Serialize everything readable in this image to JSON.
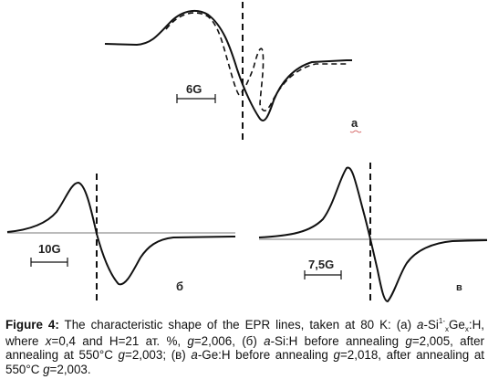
{
  "panels": {
    "a": {
      "label": "a",
      "scale_label": "6G"
    },
    "b": {
      "label": "б",
      "scale_label": "10G"
    },
    "c": {
      "label": "в",
      "scale_label": "7,5G"
    }
  },
  "caption": {
    "lead": "Figure 4:",
    "t1": " The characteristic shape of the EPR lines, taken at 80 K: (a) ",
    "ai": "a",
    "t2": "-Si",
    "sub1": "1-",
    "subx": "x",
    "t3": "Ge",
    "sub2": "x",
    "t4": ":H, where ",
    "xi": "x",
    "t5": "=0,4 and H=21 ат. %, ",
    "g1": "g",
    "t6": "=2,006, (б) ",
    "ai2": "a",
    "t7": "-Si:H before annealing ",
    "g2": "g",
    "t8": "=2,005, after annealing at 550°C ",
    "g3": "g",
    "t9": "=2,003; (в) ",
    "ai3": "a",
    "t10": "-Ge:H before annealing ",
    "g4": "g",
    "t11": "=2,018, after annealing at 550°C ",
    "g5": "g",
    "t12": "=2,003."
  }
}
